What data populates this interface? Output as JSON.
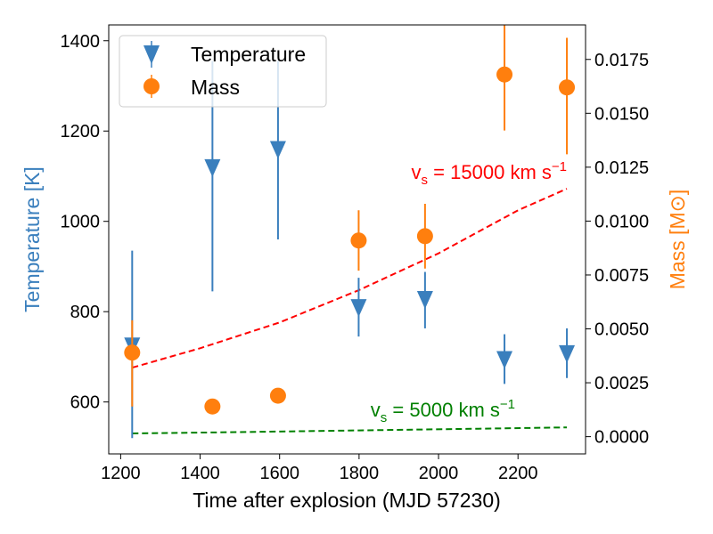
{
  "chart_data": {
    "type": "scatter",
    "xlabel": "Time after explosion (MJD 57230)",
    "ylabel_left": "Temperature [K]",
    "ylabel_right": "Mass [M⊙]",
    "xlim": [
      1170,
      2370
    ],
    "ylim_left": [
      485,
      1435
    ],
    "ylim_right": [
      -0.0008,
      0.0191
    ],
    "x_ticks": [
      1200,
      1400,
      1600,
      1800,
      2000,
      2200
    ],
    "y_left_ticks": [
      600,
      800,
      1000,
      1200,
      1400
    ],
    "y_right_ticks": [
      0.0,
      0.0025,
      0.005,
      0.0075,
      0.01,
      0.0125,
      0.015,
      0.0175
    ],
    "y_right_tick_labels": [
      "0.0000",
      "0.0025",
      "0.0050",
      "0.0075",
      "0.0100",
      "0.0125",
      "0.0150",
      "0.0175"
    ],
    "legend": {
      "placement": "top-left",
      "entries": [
        "Temperature",
        "Mass"
      ]
    },
    "series": [
      {
        "name": "Temperature",
        "axis": "left",
        "color": "#3a7fbd",
        "marker": "triangle-down",
        "x": [
          1229,
          1431,
          1596,
          1799,
          1966,
          2166,
          2323
        ],
        "y": [
          725,
          1120,
          1160,
          810,
          828,
          695,
          708
        ],
        "yerr_low": [
          205,
          275,
          200,
          65,
          65,
          55,
          55
        ],
        "yerr_high": [
          210,
          235,
          195,
          65,
          60,
          55,
          55
        ]
      },
      {
        "name": "Mass",
        "axis": "right",
        "color": "#ff7f0e",
        "marker": "circle",
        "x": [
          1229,
          1431,
          1596,
          1799,
          1966,
          2166,
          2323
        ],
        "y": [
          0.0039,
          0.0014,
          0.0019,
          0.0091,
          0.0093,
          0.0168,
          0.0162
        ],
        "yerr_low": [
          0.0025,
          0.0,
          0.0,
          0.0014,
          0.0015,
          0.0026,
          0.0031
        ],
        "yerr_high": [
          0.0015,
          0.0,
          0.0,
          0.0014,
          0.0015,
          0.0023,
          0.0023
        ]
      }
    ],
    "model_curves": [
      {
        "name": "vs15000",
        "label": "v_s = 15000 km s⁻¹",
        "color": "#ff0000",
        "style": "dashed",
        "axis": "right",
        "x": [
          1229,
          1400,
          1600,
          1800,
          2000,
          2200,
          2323
        ],
        "y": [
          0.0032,
          0.0041,
          0.0053,
          0.0068,
          0.0085,
          0.0105,
          0.0115
        ]
      },
      {
        "name": "vs5000",
        "label": "v_s = 5000 km s⁻¹",
        "color": "#008000",
        "style": "dashed",
        "axis": "right",
        "x": [
          1229,
          1500,
          1800,
          2100,
          2323
        ],
        "y": [
          0.00015,
          0.00021,
          0.00029,
          0.00037,
          0.00043
        ]
      }
    ],
    "annotations": [
      {
        "id": "vs15000",
        "sub": "s",
        "value": "15000",
        "unit": "km s",
        "exp": "−1",
        "color": "#ff0000"
      },
      {
        "id": "vs5000",
        "sub": "s",
        "value": "5000",
        "unit": "km s",
        "exp": "−1",
        "color": "#008000"
      }
    ]
  }
}
